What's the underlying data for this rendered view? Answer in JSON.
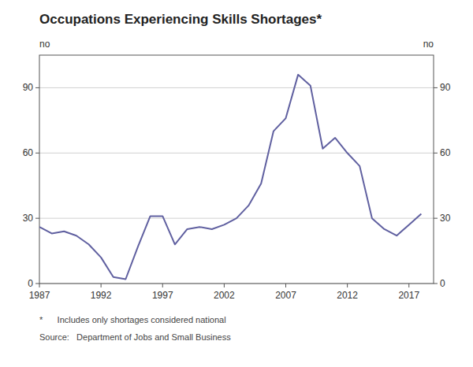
{
  "chart_data": {
    "type": "line",
    "title": "Occupations Experiencing Skills Shortages*",
    "ylabel": "no",
    "y2label": "no",
    "annotations": [
      "*      Includes only shortages considered national",
      "Source:   Department of Jobs and Small Business"
    ],
    "x": [
      1987,
      1988,
      1989,
      1990,
      1991,
      1992,
      1993,
      1994,
      1995,
      1996,
      1997,
      1998,
      1999,
      2000,
      2001,
      2002,
      2003,
      2004,
      2005,
      2006,
      2007,
      2008,
      2009,
      2010,
      2011,
      2012,
      2013,
      2014,
      2015,
      2016,
      2017,
      2018
    ],
    "values": [
      26,
      23,
      24,
      22,
      18,
      12,
      3,
      2,
      17,
      31,
      31,
      18,
      25,
      26,
      25,
      27,
      30,
      36,
      46,
      70,
      76,
      96,
      91,
      62,
      67,
      60,
      54,
      30,
      25,
      22,
      27,
      32
    ],
    "color": "#6060a0",
    "xlim": [
      1987,
      2019
    ],
    "xticks": [
      1987,
      1992,
      1997,
      2002,
      2007,
      2012,
      2017
    ],
    "ylim": [
      0,
      105
    ],
    "yticks": [
      0,
      30,
      60,
      90
    ],
    "y2lim": [
      0,
      105
    ],
    "y2ticks": [
      0,
      30,
      60,
      90
    ],
    "grid": true
  }
}
